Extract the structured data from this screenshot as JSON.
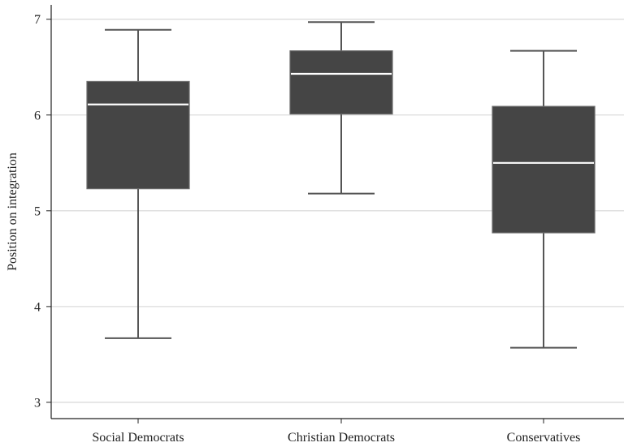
{
  "chart_data": {
    "type": "boxplot",
    "title": "",
    "xlabel": "",
    "ylabel": "Position on integration",
    "ylim": [
      2.83,
      7.15
    ],
    "yticks": [
      3,
      4,
      5,
      6,
      7
    ],
    "grid": true,
    "categories": [
      "Social Democrats",
      "Christian Democrats",
      "Conservatives"
    ],
    "boxes": [
      {
        "category": "Social Democrats",
        "min": 3.67,
        "q1": 5.23,
        "median": 6.11,
        "q3": 6.35,
        "max": 6.89
      },
      {
        "category": "Christian Democrats",
        "min": 5.18,
        "q1": 6.01,
        "median": 6.43,
        "q3": 6.67,
        "max": 6.97
      },
      {
        "category": "Conservatives",
        "min": 3.57,
        "q1": 4.77,
        "median": 5.5,
        "q3": 6.09,
        "max": 6.67
      }
    ],
    "colors": {
      "box": "#454545",
      "median": "#ffffff",
      "whisker": "#555555",
      "grid": "#dcdcdc",
      "axis": "#222222"
    }
  }
}
